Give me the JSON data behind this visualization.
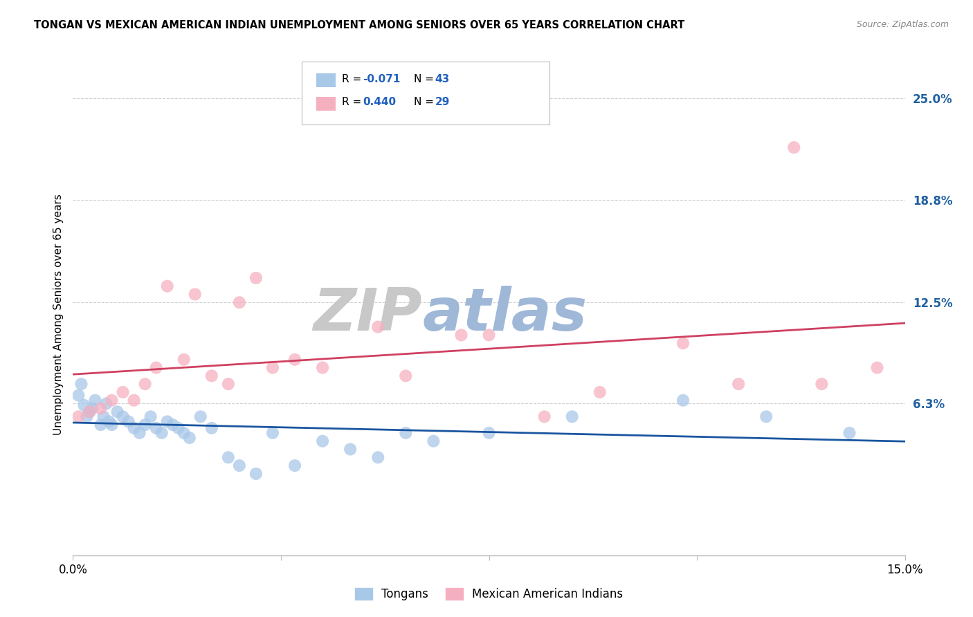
{
  "title": "TONGAN VS MEXICAN AMERICAN INDIAN UNEMPLOYMENT AMONG SENIORS OVER 65 YEARS CORRELATION CHART",
  "source": "Source: ZipAtlas.com",
  "ylabel": "Unemployment Among Seniors over 65 years",
  "xlim": [
    0.0,
    15.0
  ],
  "ylim": [
    -3.0,
    26.5
  ],
  "plot_ymin": -3.0,
  "plot_ymax": 26.5,
  "ytick_values": [
    6.3,
    12.5,
    18.8,
    25.0
  ],
  "ytick_labels": [
    "6.3%",
    "12.5%",
    "18.8%",
    "25.0%"
  ],
  "xtick_values": [
    0.0,
    3.75,
    7.5,
    11.25,
    15.0
  ],
  "xtick_labels": [
    "0.0%",
    "",
    "",
    "",
    "15.0%"
  ],
  "tongans_R": "-0.071",
  "tongans_N": "43",
  "mexican_R": "0.440",
  "mexican_N": "29",
  "tongan_color": "#a8c8e8",
  "mexican_color": "#f5b0c0",
  "tongan_line_color": "#1a55a0",
  "mexican_line_color": "#d04060",
  "background_color": "#ffffff",
  "watermark_zip": "ZIP",
  "watermark_atlas": "atlas",
  "watermark_zip_color": "#c8c8c8",
  "watermark_atlas_color": "#a0b8d8",
  "grid_color": "#d0d0d0",
  "spine_color": "#bbbbbb",
  "ytick_color": "#2060a0",
  "tongans_x": [
    0.1,
    0.15,
    0.2,
    0.25,
    0.3,
    0.35,
    0.4,
    0.5,
    0.55,
    0.6,
    0.65,
    0.7,
    0.8,
    0.9,
    1.0,
    1.1,
    1.2,
    1.3,
    1.4,
    1.5,
    1.6,
    1.7,
    1.8,
    1.9,
    2.0,
    2.1,
    2.3,
    2.5,
    2.8,
    3.0,
    3.3,
    3.6,
    4.0,
    4.5,
    5.0,
    5.5,
    6.0,
    6.5,
    7.5,
    9.0,
    11.0,
    12.5,
    14.0
  ],
  "tongans_y": [
    6.8,
    7.5,
    6.2,
    5.5,
    5.8,
    6.0,
    6.5,
    5.0,
    5.5,
    6.3,
    5.2,
    5.0,
    5.8,
    5.5,
    5.2,
    4.8,
    4.5,
    5.0,
    5.5,
    4.8,
    4.5,
    5.2,
    5.0,
    4.8,
    4.5,
    4.2,
    5.5,
    4.8,
    3.0,
    2.5,
    2.0,
    4.5,
    2.5,
    4.0,
    3.5,
    3.0,
    4.5,
    4.0,
    4.5,
    5.5,
    6.5,
    5.5,
    4.5
  ],
  "mexican_x": [
    0.1,
    0.3,
    0.5,
    0.7,
    0.9,
    1.1,
    1.3,
    1.5,
    1.7,
    2.0,
    2.2,
    2.5,
    2.8,
    3.0,
    3.3,
    3.6,
    4.0,
    4.5,
    5.5,
    6.0,
    7.0,
    7.5,
    8.5,
    9.5,
    11.0,
    12.0,
    13.0,
    13.5,
    14.5
  ],
  "mexican_y": [
    5.5,
    5.8,
    6.0,
    6.5,
    7.0,
    6.5,
    7.5,
    8.5,
    13.5,
    9.0,
    13.0,
    8.0,
    7.5,
    12.5,
    14.0,
    8.5,
    9.0,
    8.5,
    11.0,
    8.0,
    10.5,
    10.5,
    5.5,
    7.0,
    10.0,
    7.5,
    22.0,
    7.5,
    8.5
  ]
}
